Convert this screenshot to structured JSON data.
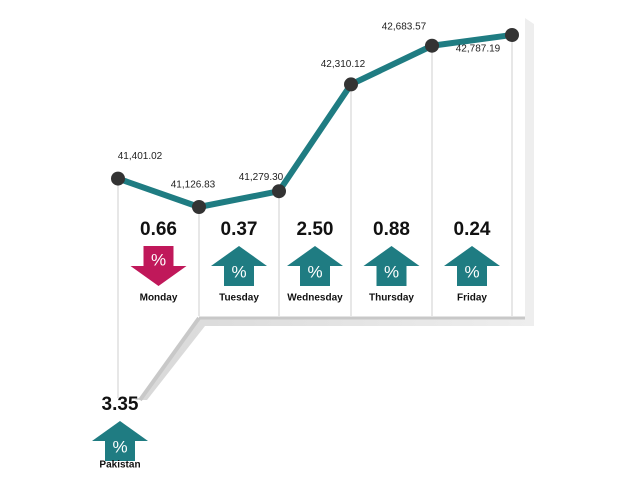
{
  "chart_data": {
    "type": "line",
    "values": [
      41401.02,
      41126.83,
      41279.3,
      42310.12,
      42683.57,
      42787.19
    ],
    "value_labels": [
      "41,401.02",
      "41,126.83",
      "41,279.30",
      "42,310.12",
      "42,683.57",
      "42,787.19"
    ],
    "color": "#1f7c82",
    "symbol": "%",
    "changes": [
      {
        "name": "Monday",
        "value": 0.66,
        "direction": "down",
        "color": "#c0185a"
      },
      {
        "name": "Tuesday",
        "value": 0.37,
        "direction": "up",
        "color": "#1f7c82"
      },
      {
        "name": "Wednesday",
        "value": 2.5,
        "value_label": "2.50",
        "direction": "up",
        "color": "#1f7c82"
      },
      {
        "name": "Thursday",
        "value": 0.88,
        "direction": "up",
        "color": "#1f7c82"
      },
      {
        "name": "Friday",
        "value": 0.24,
        "direction": "up",
        "color": "#1f7c82"
      },
      {
        "name": "Pakistan",
        "value": 3.35,
        "direction": "up",
        "color": "#1f7c82"
      }
    ]
  }
}
